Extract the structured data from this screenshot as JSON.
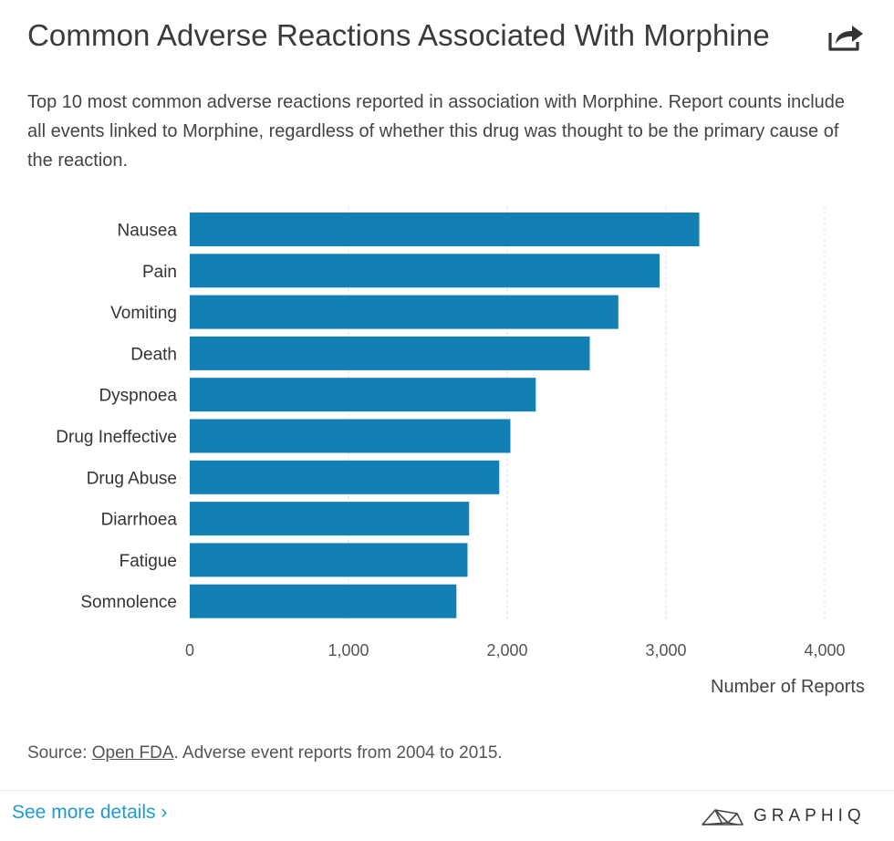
{
  "header": {
    "title": "Common Adverse Reactions Associated With Morphine",
    "subtitle": "Top 10 most common adverse reactions reported in association with Morphine. Report counts include all events linked to Morphine, regardless of whether this drug was thought to be the primary cause of the reaction."
  },
  "chart_data": {
    "type": "bar",
    "orientation": "horizontal",
    "categories": [
      "Nausea",
      "Pain",
      "Vomiting",
      "Death",
      "Dyspnoea",
      "Drug Ineffective",
      "Drug Abuse",
      "Diarrhoea",
      "Fatigue",
      "Somnolence"
    ],
    "values": [
      3210,
      2960,
      2700,
      2520,
      2180,
      2020,
      1950,
      1760,
      1750,
      1680
    ],
    "xlabel": "Number of Reports",
    "ylabel": "",
    "xlim": [
      0,
      4000
    ],
    "xticks": [
      0,
      1000,
      2000,
      3000,
      4000
    ],
    "xtick_labels": [
      "0",
      "1,000",
      "2,000",
      "3,000",
      "4,000"
    ],
    "grid": true,
    "bar_color": "#1380b5"
  },
  "footer": {
    "source_prefix": "Source: ",
    "source_link": "Open FDA",
    "source_suffix": ". Adverse event reports from 2004 to 2015.",
    "more_details": "See more details ›",
    "brand": "GRAPHIQ"
  },
  "colors": {
    "bar": "#1380b5",
    "link": "#1f9bd1",
    "grid": "#dddddd"
  },
  "icons": {
    "share": "share-icon",
    "brand": "graphiq-logo-icon"
  }
}
